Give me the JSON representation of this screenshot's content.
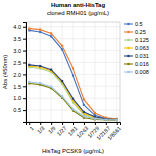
{
  "chart_data": {
    "type": "line",
    "title": "Human anti-HisTag",
    "subtitle": "cloned RMH01 (µg/mL)",
    "x_label": "HisTag PCSK9 (µg/mL)",
    "y_label": "Abs (450nm)",
    "categories": [
      "1",
      "1/3",
      "1/9",
      "1/27",
      "1/81",
      "1/243",
      "1/729",
      "1/2187",
      "1/6561"
    ],
    "series": [
      {
        "name": "0.5",
        "color": "#4472C4",
        "marker": "square",
        "line_style": "solid",
        "values": [
          3.85,
          3.78,
          3.6,
          3.05,
          1.95,
          0.72,
          0.28,
          0.15,
          0.12
        ]
      },
      {
        "name": "0.25",
        "color": "#ED7D31",
        "marker": "square",
        "line_style": "solid",
        "values": [
          3.92,
          3.88,
          3.72,
          3.2,
          2.25,
          0.95,
          0.38,
          0.18,
          0.13
        ]
      },
      {
        "name": "0.125",
        "color": "#A9D18E",
        "marker": "square",
        "line_style": "solid",
        "values": [
          2.3,
          2.25,
          2.1,
          1.6,
          0.82,
          0.3,
          0.15,
          0.1,
          0.09
        ]
      },
      {
        "name": "0.063",
        "color": "#FFC000",
        "marker": "square",
        "line_style": "solid",
        "values": [
          2.35,
          2.3,
          2.15,
          1.68,
          0.9,
          0.36,
          0.18,
          0.12,
          0.1
        ]
      },
      {
        "name": "0.031",
        "color": "#264478",
        "marker": "square",
        "line_style": "solid",
        "values": [
          2.4,
          2.35,
          2.2,
          1.72,
          0.98,
          0.42,
          0.22,
          0.13,
          0.1
        ]
      },
      {
        "name": "0.016",
        "color": "#7F7F00",
        "marker": "square",
        "line_style": "solid",
        "values": [
          1.62,
          1.57,
          1.42,
          1.02,
          0.48,
          0.18,
          0.11,
          0.09,
          0.08
        ]
      },
      {
        "name": "0.008",
        "color": "#9DC3E6",
        "marker": "square",
        "line_style": "solid",
        "values": [
          1.68,
          1.63,
          1.48,
          1.08,
          0.54,
          0.24,
          0.14,
          0.1,
          0.09
        ]
      }
    ],
    "ylim": [
      0,
      4.2
    ],
    "yticks": [
      0.5,
      {
        "value": 1.0,
        "label": "1.0"
      },
      1.5,
      {
        "value": 2.0,
        "label": "2.0"
      },
      2.5,
      {
        "value": 3.0,
        "label": "3.0"
      },
      3.5,
      {
        "value": 4.0,
        "label": "4.0"
      }
    ],
    "grid": true,
    "legend": "right"
  }
}
